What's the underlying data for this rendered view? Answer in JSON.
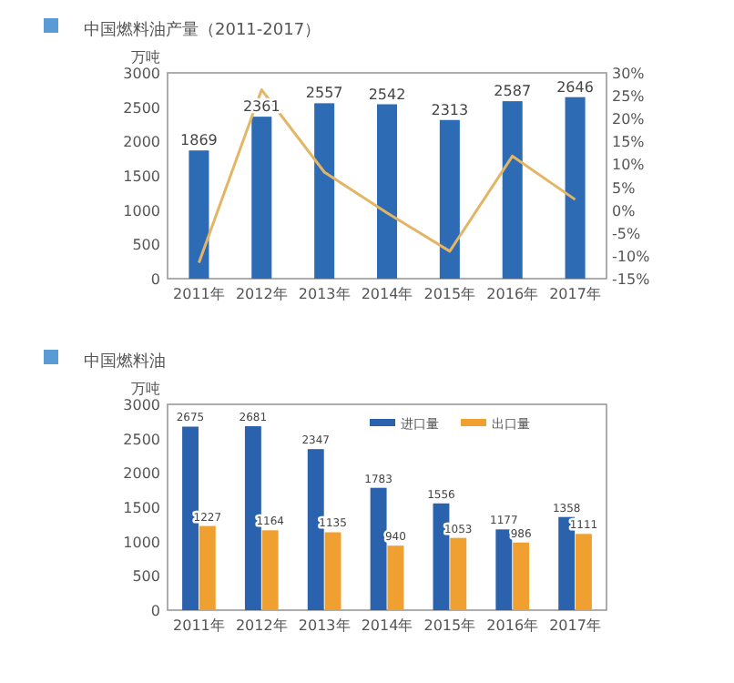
{
  "chart_data": [
    {
      "type": "bar",
      "title": "中国燃料油产量（2011-2017）",
      "ylabel": "万吨",
      "categories": [
        "2011年",
        "2012年",
        "2013年",
        "2014年",
        "2015年",
        "2016年",
        "2017年"
      ],
      "series": [
        {
          "color": "#2e6bb5",
          "values": [
            1869,
            2361,
            2557,
            2542,
            2313,
            2587,
            2646
          ],
          "value_labels": [
            "1869",
            "2361",
            "2557",
            "2542",
            "2313",
            "2587",
            "2646"
          ]
        },
        {
          "type": "line",
          "axis": "y2",
          "color": "#e3b565",
          "values": [
            -11.5,
            26.3,
            8.3,
            -0.6,
            -9.0,
            11.8,
            2.3
          ]
        }
      ],
      "ylim": [
        0,
        3000
      ],
      "yticks": [
        0,
        500,
        1000,
        1500,
        2000,
        2500,
        3000
      ],
      "y2lim": [
        -15,
        30
      ],
      "y2ticks": [
        {
          "value": -15,
          "label": "-15%"
        },
        {
          "value": -10,
          "label": "-10%"
        },
        {
          "value": -5,
          "label": "-5%"
        },
        {
          "value": 0,
          "label": "0%"
        },
        {
          "value": 5,
          "label": "5%"
        },
        {
          "value": 10,
          "label": "10%"
        },
        {
          "value": 15,
          "label": "15%"
        },
        {
          "value": 20,
          "label": "20%"
        },
        {
          "value": 25,
          "label": "25%"
        },
        {
          "value": 30,
          "label": "30%"
        }
      ],
      "grid": false,
      "legend": false
    },
    {
      "type": "bar",
      "title": "中国燃料油",
      "ylabel": "万吨",
      "categories": [
        "2011年",
        "2012年",
        "2013年",
        "2014年",
        "2015年",
        "2016年",
        "2017年"
      ],
      "series": [
        {
          "name": "进口量",
          "color": "#2a62ad",
          "values": [
            2675,
            2681,
            2347,
            1783,
            1556,
            1177,
            1358
          ],
          "value_labels": [
            "2675",
            "2681",
            "2347",
            "1783",
            "1556",
            "1177",
            "1358"
          ]
        },
        {
          "name": "出口量",
          "color": "#f0a030",
          "values": [
            1227,
            1164,
            1135,
            940,
            1053,
            986,
            1111
          ],
          "value_labels": [
            "1227",
            "1164",
            "1135",
            "940",
            "1053",
            "986",
            "1111"
          ]
        }
      ],
      "ylim": [
        0,
        3000
      ],
      "yticks": [
        0,
        500,
        1000,
        1500,
        2000,
        2500,
        3000
      ],
      "grid": false,
      "legend": "top right"
    }
  ]
}
